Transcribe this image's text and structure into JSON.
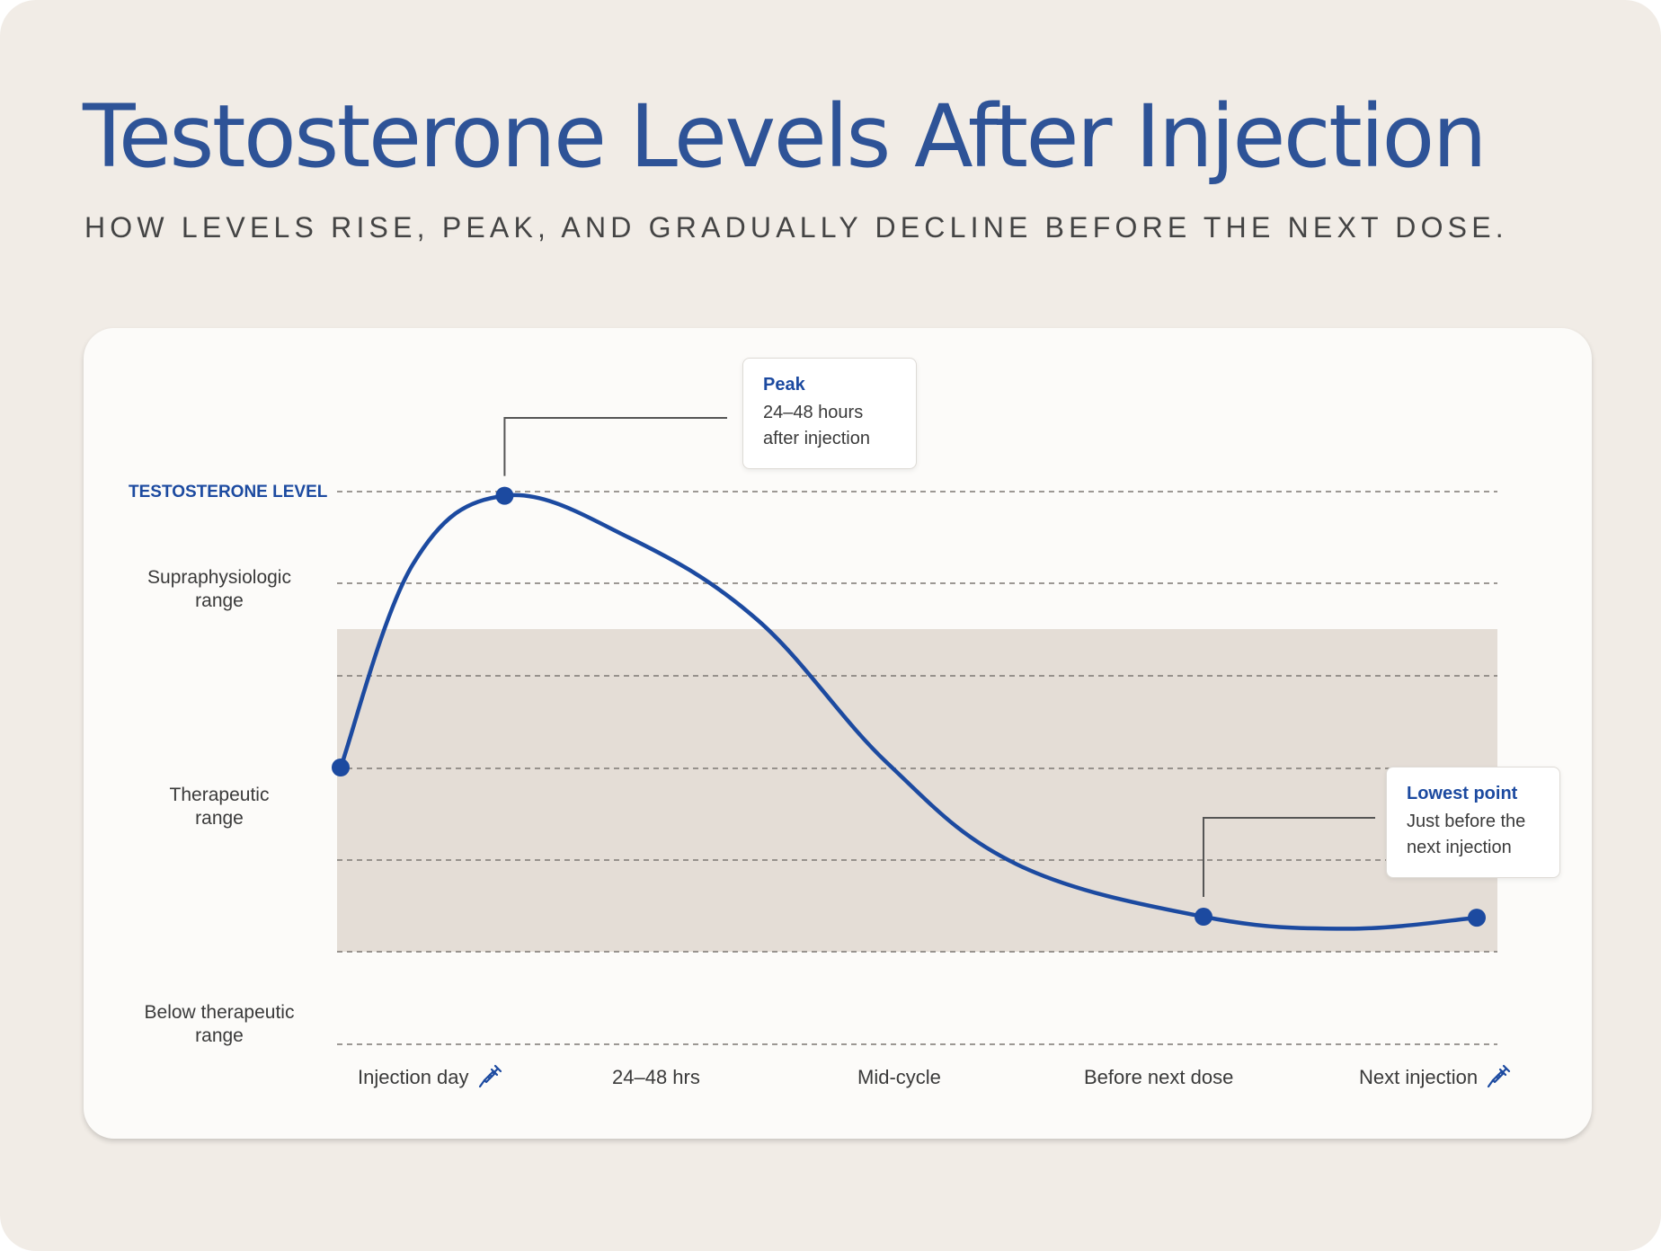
{
  "header": {
    "title": "Testosterone Levels After Injection",
    "subtitle": "HOW LEVELS RISE, PEAK, AND GRADUALLY DECLINE BEFORE THE NEXT DOSE."
  },
  "colors": {
    "accent": "#1c4aa0",
    "title": "#2e5397",
    "therapeutic_band": "#e4ddd6",
    "background": "#f1ece6",
    "card": "#fcfbf9"
  },
  "chart_data": {
    "type": "line",
    "ylabel": "TESTOSTERONE LEVEL",
    "y_bands": [
      {
        "label_lines": [
          "Supraphysiologic",
          "range"
        ]
      },
      {
        "label_lines": [
          "Therapeutic",
          "range"
        ]
      },
      {
        "label_lines": [
          "Below therapeutic",
          "range"
        ]
      }
    ],
    "categories": [
      {
        "label": "Injection day",
        "icon": "syringe-icon"
      },
      {
        "label": "24–48 hrs",
        "icon": null
      },
      {
        "label": "Mid-cycle",
        "icon": null
      },
      {
        "label": "Before next dose",
        "icon": null
      },
      {
        "label": "Next injection",
        "icon": "syringe-icon"
      }
    ],
    "grid": "dashed horizontal",
    "series": [
      {
        "style": "smooth",
        "points": [
          {
            "x": 0.0,
            "y": 2.0,
            "marker": true
          },
          {
            "x": 0.25,
            "y": 4.2
          },
          {
            "x": 0.57,
            "y": 4.95,
            "marker": true
          },
          {
            "x": 1.0,
            "y": 4.5
          },
          {
            "x": 1.45,
            "y": 3.6
          },
          {
            "x": 1.9,
            "y": 2.05
          },
          {
            "x": 2.35,
            "y": 0.95
          },
          {
            "x": 3.0,
            "y": 0.38,
            "marker": true
          },
          {
            "x": 3.5,
            "y": 0.25
          },
          {
            "x": 3.95,
            "y": 0.37,
            "marker": true
          }
        ]
      }
    ],
    "callouts": [
      {
        "title": "Peak",
        "lines": [
          "24–48 hours",
          "after injection"
        ],
        "anchor_index": 2
      },
      {
        "title": "Lowest point",
        "lines": [
          "Just before the",
          "next injection"
        ],
        "anchor_index": 7
      }
    ]
  }
}
